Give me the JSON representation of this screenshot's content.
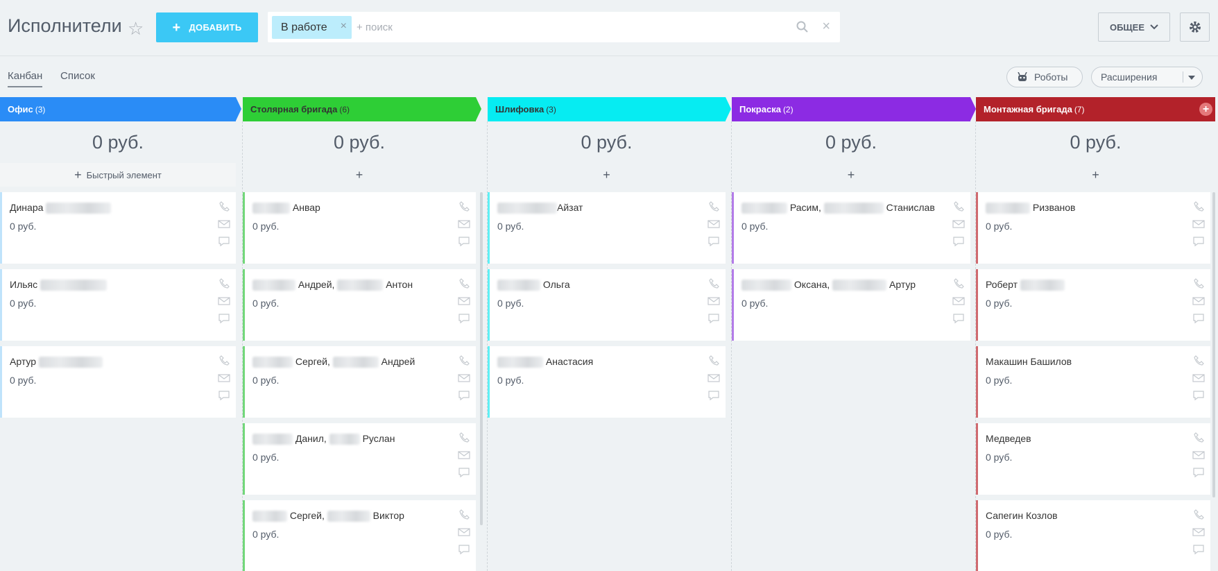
{
  "header": {
    "title": "Исполнители",
    "add_label": "ДОБАВИТЬ",
    "filter_chip": "В работе",
    "search_placeholder": "+ поиск",
    "general_label": "ОБЩЕЕ"
  },
  "views": {
    "kanban": "Канбан",
    "list": "Список",
    "robots": "Роботы",
    "extensions": "Расширения"
  },
  "quick_add_label": "Быстрый элемент",
  "columns": [
    {
      "name": "Офис",
      "count": "(3)",
      "color": "#2a8cf6",
      "text_color": "#ffffff",
      "sum": "0 руб.",
      "cards": [
        {
          "title": "Динара",
          "price": "0 руб."
        },
        {
          "title": "Ильяс",
          "price": "0 руб."
        },
        {
          "title": "Артур",
          "price": "0 руб."
        }
      ]
    },
    {
      "name": "Столярная бригада",
      "count": "(6)",
      "color": "#2ece36",
      "text_color": "#333333",
      "sum": "0 руб.",
      "cards": [
        {
          "title": "Анвар",
          "price": "0 руб."
        },
        {
          "title": "Андрей,",
          "title2": "Антон",
          "price": "0 руб."
        },
        {
          "title": "Сергей,",
          "title2": "Андрей",
          "price": "0 руб."
        },
        {
          "title": "Данил,",
          "title2": "Руслан",
          "price": "0 руб."
        },
        {
          "title": "Сергей,",
          "title2": "Виктор",
          "price": "0 руб."
        }
      ]
    },
    {
      "name": "Шлифовка",
      "count": "(3)",
      "color": "#06ecf2",
      "text_color": "#333333",
      "sum": "0 руб.",
      "cards": [
        {
          "title": "Айзат",
          "price": "0 руб."
        },
        {
          "title": "Ольга",
          "price": "0 руб."
        },
        {
          "title": "Анастасия",
          "price": "0 руб."
        }
      ]
    },
    {
      "name": "Покраска",
      "count": "(2)",
      "color": "#8c2be3",
      "text_color": "#ffffff",
      "sum": "0 руб.",
      "cards": [
        {
          "title": "Расим,",
          "title2": "Станислав",
          "price": "0 руб."
        },
        {
          "title": "Оксана,",
          "title2": "Артур",
          "price": "0 руб."
        }
      ]
    },
    {
      "name": "Монтажная бригада",
      "count": "(7)",
      "color": "#b3222a",
      "text_color": "#ffffff",
      "sum": "0 руб.",
      "cards": [
        {
          "title": "Ризванов",
          "price": "0 руб."
        },
        {
          "title": "Роберт",
          "price": "0 руб."
        },
        {
          "title": "Макашин Башилов",
          "price": "0 руб."
        },
        {
          "title": "Медведев",
          "price": "0 руб."
        },
        {
          "title": "Сапегин Козлов",
          "price": "0 руб."
        }
      ]
    }
  ]
}
